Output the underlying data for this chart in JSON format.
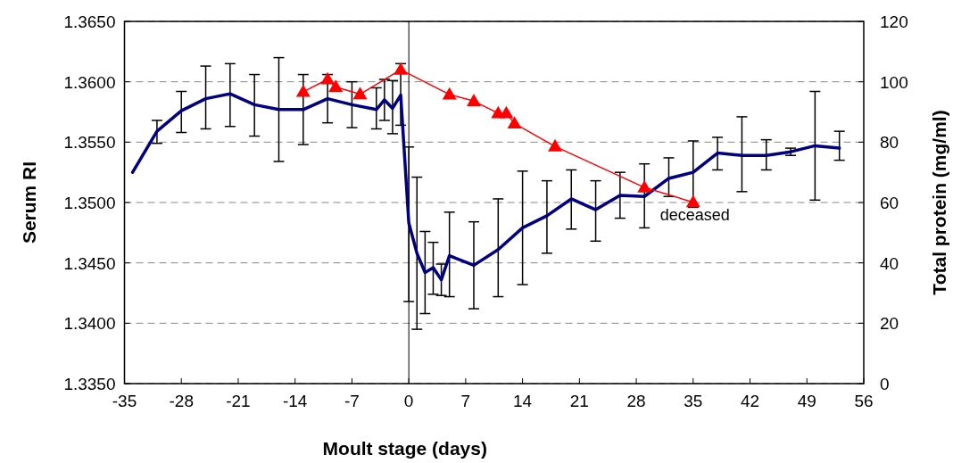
{
  "chart_data": {
    "type": "line",
    "xlabel": "Moult stage (days)",
    "ylabel": "Serum RI",
    "y2label": "Total protein (mg/ml)",
    "xlim": [
      -35,
      56
    ],
    "xticks": [
      -35,
      -28,
      -21,
      -14,
      -7,
      0,
      7,
      14,
      21,
      28,
      35,
      42,
      49,
      56
    ],
    "ylim": [
      1.335,
      1.365
    ],
    "yticks": [
      {
        "value": 1.335,
        "label": "1.3350"
      },
      {
        "value": 1.34,
        "label": "1.3400"
      },
      {
        "value": 1.345,
        "label": "1.3450"
      },
      {
        "value": 1.35,
        "label": "1.3500"
      },
      {
        "value": 1.355,
        "label": "1.3550"
      },
      {
        "value": 1.36,
        "label": "1.3600"
      },
      {
        "value": 1.365,
        "label": "1.3650"
      }
    ],
    "y2lim": [
      0,
      120
    ],
    "y2ticks": [
      0,
      20,
      40,
      60,
      80,
      100,
      120
    ],
    "grid": "y",
    "ref_lines": [
      {
        "axis": "x",
        "value": 0,
        "color": "#000000",
        "line_style": "solid"
      }
    ],
    "annotations": [
      "deceased"
    ],
    "series": [
      {
        "color": "#000080",
        "marker": "none",
        "x": [
          -34,
          -31,
          -28,
          -25,
          -22,
          -19,
          -16,
          -13,
          -10,
          -7,
          -4,
          -3,
          -2,
          -1,
          0,
          1,
          2,
          3,
          4,
          5,
          8,
          11,
          14,
          17,
          20,
          23,
          26,
          29,
          32,
          35,
          38,
          41,
          44,
          47,
          50,
          53
        ],
        "values": [
          1.3525,
          1.3559,
          1.3576,
          1.3586,
          1.359,
          1.3581,
          1.3577,
          1.3577,
          1.3586,
          1.3581,
          1.3577,
          1.3585,
          1.3578,
          1.3589,
          1.3483,
          1.3458,
          1.3442,
          1.3446,
          1.3436,
          1.3456,
          1.3448,
          1.3461,
          1.3479,
          1.3489,
          1.3503,
          1.3494,
          1.3506,
          1.3505,
          1.352,
          1.3525,
          1.3541,
          1.3539,
          1.3539,
          1.3542,
          1.3547,
          1.3545
        ],
        "errors": [
          null,
          [
            1.3549,
            1.3568
          ],
          [
            1.3558,
            1.3592
          ],
          [
            1.3561,
            1.3613
          ],
          [
            1.3563,
            1.3615
          ],
          [
            1.3555,
            1.3606
          ],
          [
            1.3534,
            1.362
          ],
          [
            1.3548,
            1.3606
          ],
          [
            1.3566,
            1.3606
          ],
          [
            1.3562,
            1.36
          ],
          [
            1.3561,
            1.3595
          ],
          [
            1.3568,
            1.3602
          ],
          [
            1.3557,
            1.3601
          ],
          [
            1.3564,
            1.3615
          ],
          [
            1.3418,
            1.3546
          ],
          [
            1.3395,
            1.3521
          ],
          [
            1.3408,
            1.3476
          ],
          [
            1.3424,
            1.3467
          ],
          [
            1.3423,
            1.3449
          ],
          [
            1.3422,
            1.3492
          ],
          [
            1.3412,
            1.3484
          ],
          [
            1.3422,
            1.3503
          ],
          [
            1.3432,
            1.3526
          ],
          [
            1.3458,
            1.3518
          ],
          [
            1.3478,
            1.3527
          ],
          [
            1.3468,
            1.3518
          ],
          [
            1.3487,
            1.3525
          ],
          [
            1.3479,
            1.3532
          ],
          [
            1.3505,
            1.3537
          ],
          [
            1.3496,
            1.3551
          ],
          [
            1.3527,
            1.3554
          ],
          [
            1.3509,
            1.3571
          ],
          [
            1.3527,
            1.3552
          ],
          [
            1.3539,
            1.3545
          ],
          [
            1.3502,
            1.3592
          ],
          [
            1.3535,
            1.3559
          ]
        ]
      },
      {
        "color": "#ff0000",
        "marker": "triangle",
        "axis": "y2",
        "x": [
          -13,
          -10,
          -9,
          -6,
          -1,
          5,
          8,
          11,
          12,
          13,
          18,
          29,
          35
        ],
        "values": [
          96.7,
          100.8,
          98.3,
          95.9,
          104,
          95.8,
          93.6,
          89.6,
          89.6,
          86.2,
          78.6,
          65,
          60.1
        ]
      }
    ]
  }
}
